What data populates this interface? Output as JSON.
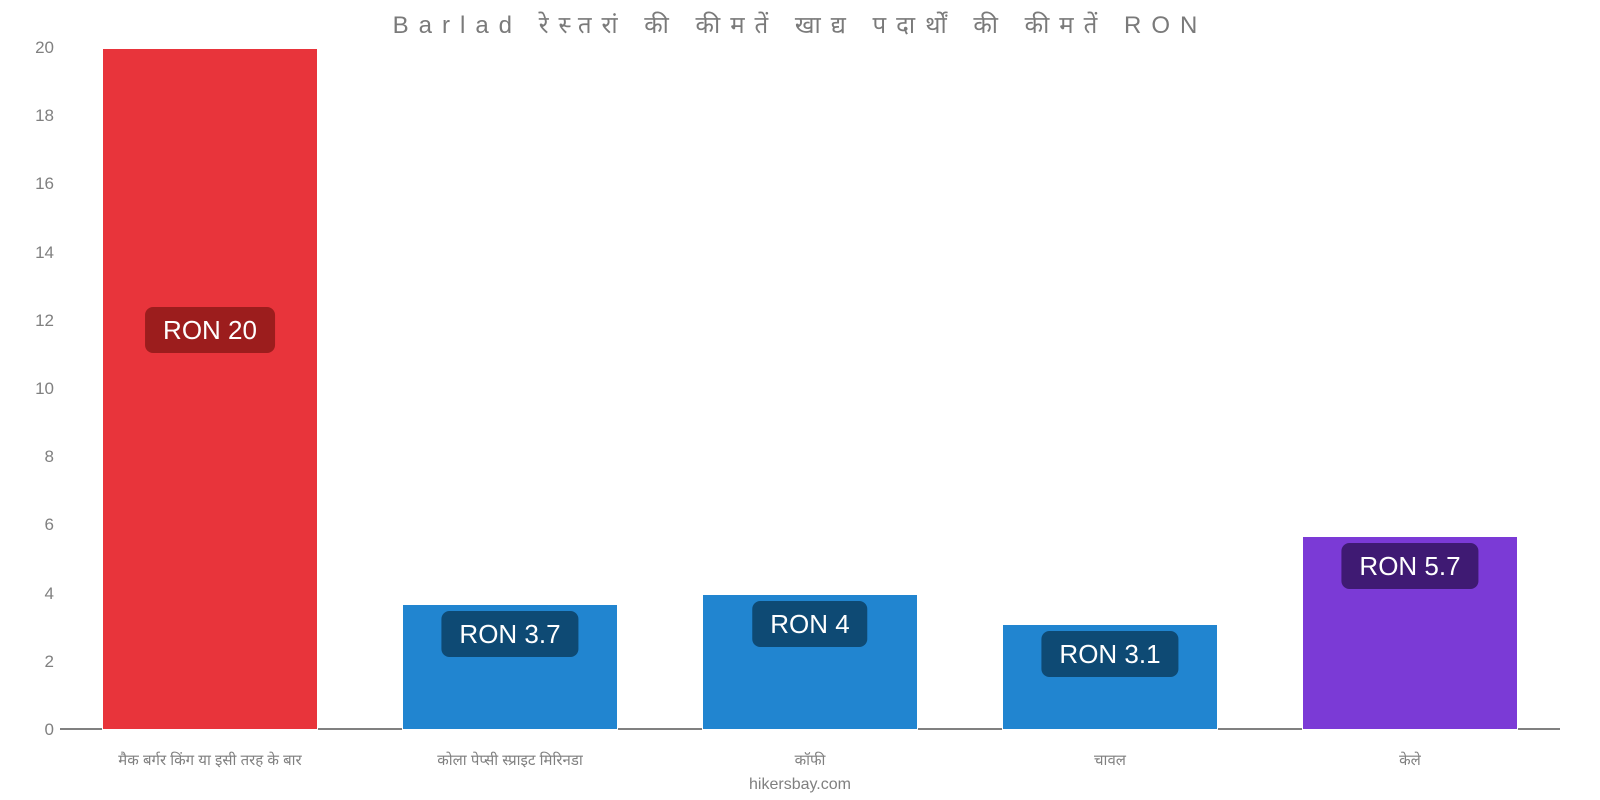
{
  "chart": {
    "type": "bar",
    "title": "Barlad रेस्तरां की कीमतें खाद्य पदार्थों की कीमतें RON",
    "title_fontsize": 24,
    "title_color": "#7a7a7a",
    "title_letter_spacing": 10,
    "background_color": "#ffffff",
    "ylim": [
      0,
      20
    ],
    "ytick_step": 2,
    "yticks": [
      0,
      2,
      4,
      6,
      8,
      10,
      12,
      14,
      16,
      18,
      20
    ],
    "axis_label_color": "#808080",
    "axis_label_fontsize": 17,
    "baseline_color": "#808080",
    "categories": [
      "मैक बर्गर किंग या इसी तरह के बार",
      "कोला पेप्सी स्प्राइट मिरिनडा",
      "कॉफी",
      "चावल",
      "केले"
    ],
    "xlabel_fontsize": 15,
    "xlabel_color": "#808080",
    "values": [
      20,
      3.7,
      4,
      3.1,
      5.7
    ],
    "value_labels": [
      "RON 20",
      "RON 3.7",
      "RON 4",
      "RON 3.1",
      "RON 5.7"
    ],
    "bar_colors": [
      "#e8343b",
      "#2185d0",
      "#2185d0",
      "#2185d0",
      "#7b3ad6"
    ],
    "badge_colors": [
      "#9c1d1d",
      "#0e4a74",
      "#0e4a74",
      "#0e4a74",
      "#3f1a73"
    ],
    "badge_text_color": "#ffffff",
    "badge_fontsize": 26,
    "bar_width_pct": 72,
    "bar_border_color": "#ffffff",
    "watermark": "hikersbay.com",
    "watermark_color": "#808080",
    "watermark_fontsize": 16
  }
}
